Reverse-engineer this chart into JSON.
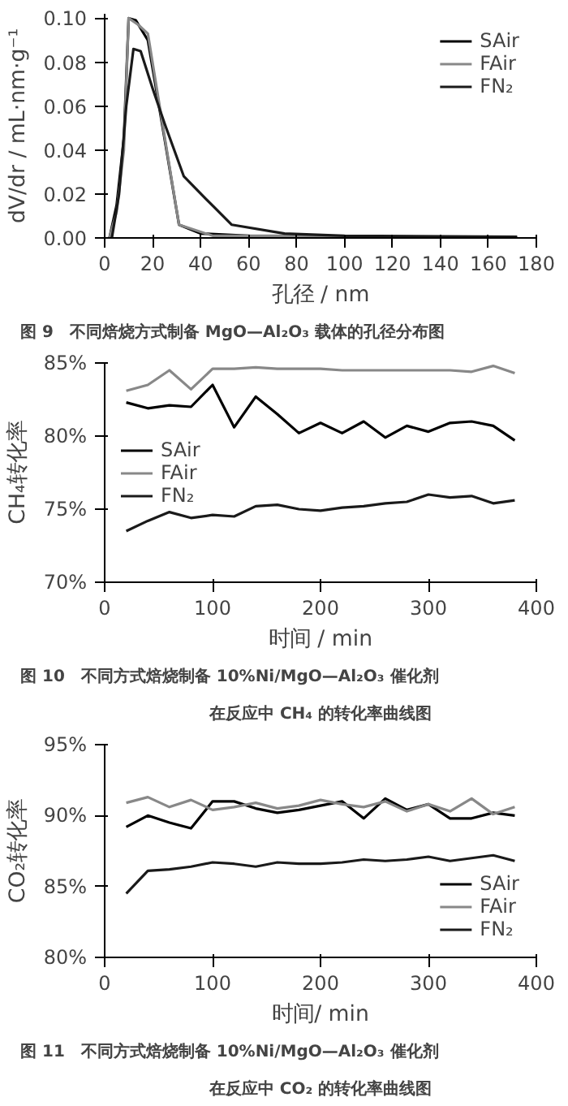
{
  "chart_data": [
    {
      "type": "line",
      "title": "图 9　不同焙烧方式制备 MgO—Al₂O₃ 载体的孔径分布图",
      "xlabel": "孔径 / nm",
      "ylabel": "dV/dr / mL·nm·g⁻¹",
      "xlim": [
        0,
        180
      ],
      "xticks": [
        0,
        20,
        40,
        60,
        80,
        100,
        120,
        140,
        160,
        180
      ],
      "ylim": [
        0,
        0.102
      ],
      "yticks": [
        {
          "value": 0,
          "label": "0.00"
        },
        {
          "value": 0.02,
          "label": "0.02"
        },
        {
          "value": 0.04,
          "label": "0.04"
        },
        {
          "value": 0.06,
          "label": "0.06"
        },
        {
          "value": 0.08,
          "label": "0.08"
        },
        {
          "value": 0.1,
          "label": "0.10"
        }
      ],
      "grid": false,
      "legend": "top right",
      "series": [
        {
          "name": "SAir",
          "color": "#000000",
          "x": [
            2,
            5,
            8,
            10,
            13,
            18,
            25,
            31,
            40,
            60,
            100,
            172
          ],
          "values": [
            0,
            0.015,
            0.045,
            0.1,
            0.099,
            0.09,
            0.045,
            0.006,
            0.002,
            0.001,
            0.0005,
            0
          ]
        },
        {
          "name": "FAir",
          "color": "#888888",
          "x": [
            2,
            5,
            8,
            10,
            14,
            18,
            25,
            31,
            45,
            80,
            172
          ],
          "values": [
            0,
            0.012,
            0.04,
            0.1,
            0.097,
            0.093,
            0.046,
            0.006,
            0.001,
            0.001,
            0
          ]
        },
        {
          "name": "FN₂",
          "color": "#1a1a1a",
          "x": [
            3,
            6,
            9,
            12,
            15,
            20,
            25,
            33,
            42,
            53,
            75,
            100,
            172
          ],
          "values": [
            0,
            0.02,
            0.06,
            0.086,
            0.085,
            0.068,
            0.052,
            0.028,
            0.018,
            0.006,
            0.002,
            0.001,
            0.0005
          ]
        }
      ]
    },
    {
      "type": "line",
      "title": "图 10　不同方式焙烧制备 10%Ni/MgO—Al₂O₃ 催化剂",
      "subtitle": "在反应中 CH₄ 的转化率曲线图",
      "xlabel": "时间 / min",
      "ylabel": "CH₄转化率",
      "xlim": [
        0,
        400
      ],
      "xticks": [
        0,
        100,
        200,
        300,
        400
      ],
      "ylim": [
        70,
        85
      ],
      "yticks": [
        {
          "value": 70,
          "label": "70%"
        },
        {
          "value": 75,
          "label": "75%"
        },
        {
          "value": 80,
          "label": "80%"
        },
        {
          "value": 85,
          "label": "85%"
        }
      ],
      "grid": false,
      "legend": "left",
      "x": [
        20,
        40,
        60,
        80,
        100,
        120,
        140,
        160,
        180,
        200,
        220,
        240,
        260,
        280,
        300,
        320,
        340,
        360,
        380
      ],
      "series": [
        {
          "name": "SAir",
          "color": "#000000",
          "values": [
            82.3,
            81.9,
            82.1,
            82.0,
            83.5,
            80.6,
            82.7,
            81.5,
            80.2,
            80.9,
            80.2,
            81.0,
            79.9,
            80.7,
            80.3,
            80.9,
            81.0,
            80.7,
            79.7
          ]
        },
        {
          "name": "FAir",
          "color": "#888888",
          "values": [
            83.1,
            83.5,
            84.5,
            83.2,
            84.6,
            84.6,
            84.7,
            84.6,
            84.6,
            84.6,
            84.5,
            84.5,
            84.5,
            84.5,
            84.5,
            84.5,
            84.4,
            84.8,
            84.3
          ]
        },
        {
          "name": "FN₂",
          "color": "#1a1a1a",
          "values": [
            73.5,
            74.2,
            74.8,
            74.4,
            74.6,
            74.5,
            75.2,
            75.3,
            75.0,
            74.9,
            75.1,
            75.2,
            75.4,
            75.5,
            76.0,
            75.8,
            75.9,
            75.4,
            75.6
          ]
        }
      ]
    },
    {
      "type": "line",
      "title": "图 11　不同方式焙烧制备 10%Ni/MgO—Al₂O₃ 催化剂",
      "subtitle": "在反应中 CO₂ 的转化率曲线图",
      "xlabel": "时间/ min",
      "ylabel": "CO₂转化率",
      "xlim": [
        0,
        400
      ],
      "xticks": [
        0,
        100,
        200,
        300,
        400
      ],
      "ylim": [
        80,
        95
      ],
      "yticks": [
        {
          "value": 80,
          "label": "80%"
        },
        {
          "value": 85,
          "label": "85%"
        },
        {
          "value": 90,
          "label": "90%"
        },
        {
          "value": 95,
          "label": "95%"
        }
      ],
      "grid": false,
      "legend": "bottom right",
      "x": [
        20,
        40,
        60,
        80,
        100,
        120,
        140,
        160,
        180,
        200,
        220,
        240,
        260,
        280,
        300,
        320,
        340,
        360,
        380
      ],
      "series": [
        {
          "name": "SAir",
          "color": "#000000",
          "values": [
            89.2,
            90.0,
            89.5,
            89.1,
            91.0,
            91.0,
            90.5,
            90.2,
            90.4,
            90.7,
            91.0,
            89.8,
            91.2,
            90.4,
            90.8,
            89.8,
            89.8,
            90.2,
            90.0
          ]
        },
        {
          "name": "FAir",
          "color": "#888888",
          "values": [
            90.9,
            91.3,
            90.6,
            91.1,
            90.4,
            90.6,
            90.9,
            90.5,
            90.7,
            91.1,
            90.8,
            90.6,
            91.0,
            90.3,
            90.8,
            90.3,
            91.2,
            90.1,
            90.6
          ]
        },
        {
          "name": "FN₂",
          "color": "#1a1a1a",
          "values": [
            84.5,
            86.1,
            86.2,
            86.4,
            86.7,
            86.6,
            86.4,
            86.7,
            86.6,
            86.6,
            86.7,
            86.9,
            86.8,
            86.9,
            87.1,
            86.8,
            87.0,
            87.2,
            86.8
          ]
        }
      ]
    }
  ]
}
